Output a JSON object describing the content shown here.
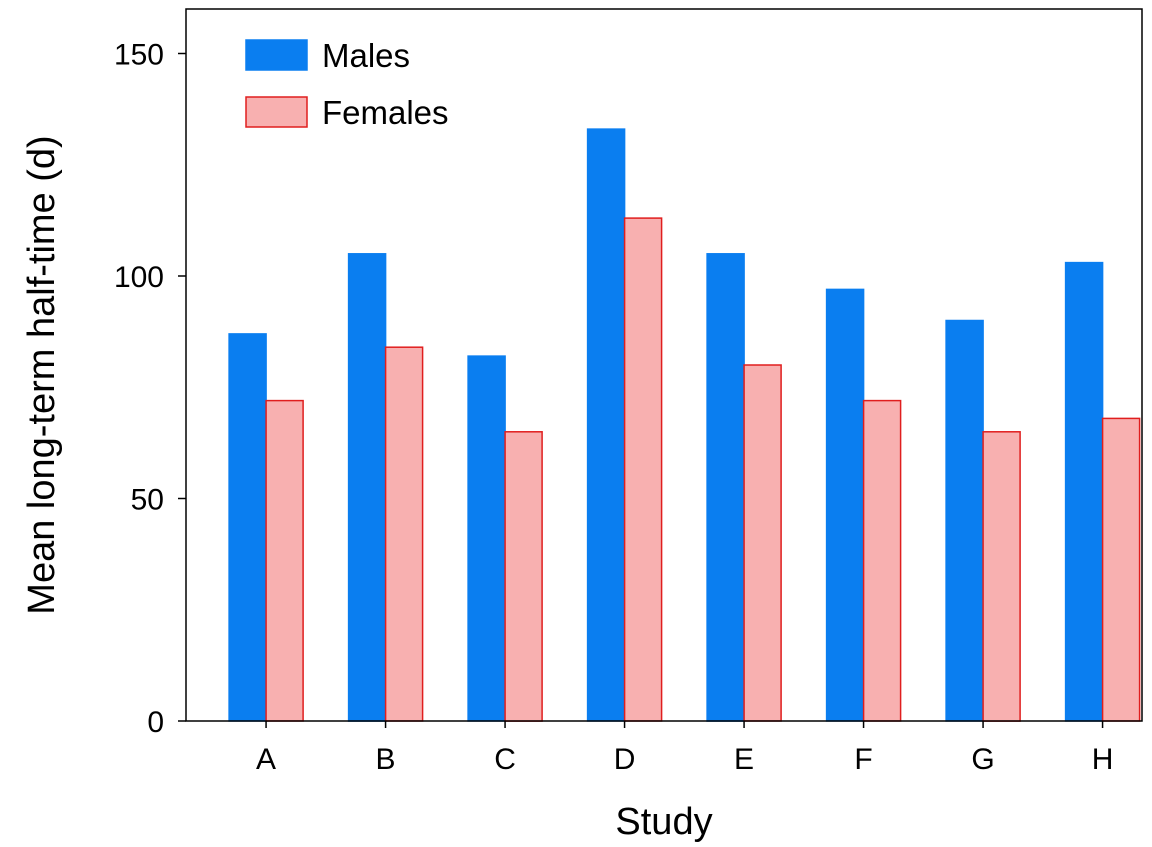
{
  "chart_data": {
    "type": "bar",
    "categories": [
      "A",
      "B",
      "C",
      "D",
      "E",
      "F",
      "G",
      "H"
    ],
    "series": [
      {
        "name": "Males",
        "values": [
          87,
          105,
          82,
          133,
          105,
          97,
          90,
          103
        ],
        "fill": "#0a7ef0",
        "stroke": "#0a7ef0"
      },
      {
        "name": "Females",
        "values": [
          72,
          84,
          65,
          113,
          80,
          72,
          65,
          68
        ],
        "fill": "#f8b0b0",
        "stroke": "#e01e1e"
      }
    ],
    "xlabel": "Study",
    "ylabel": "Mean long-term half-time (d)",
    "ylim": [
      0,
      160
    ],
    "yticks": [
      0,
      50,
      100,
      150
    ],
    "grid": false,
    "legend_position": "top-left"
  }
}
